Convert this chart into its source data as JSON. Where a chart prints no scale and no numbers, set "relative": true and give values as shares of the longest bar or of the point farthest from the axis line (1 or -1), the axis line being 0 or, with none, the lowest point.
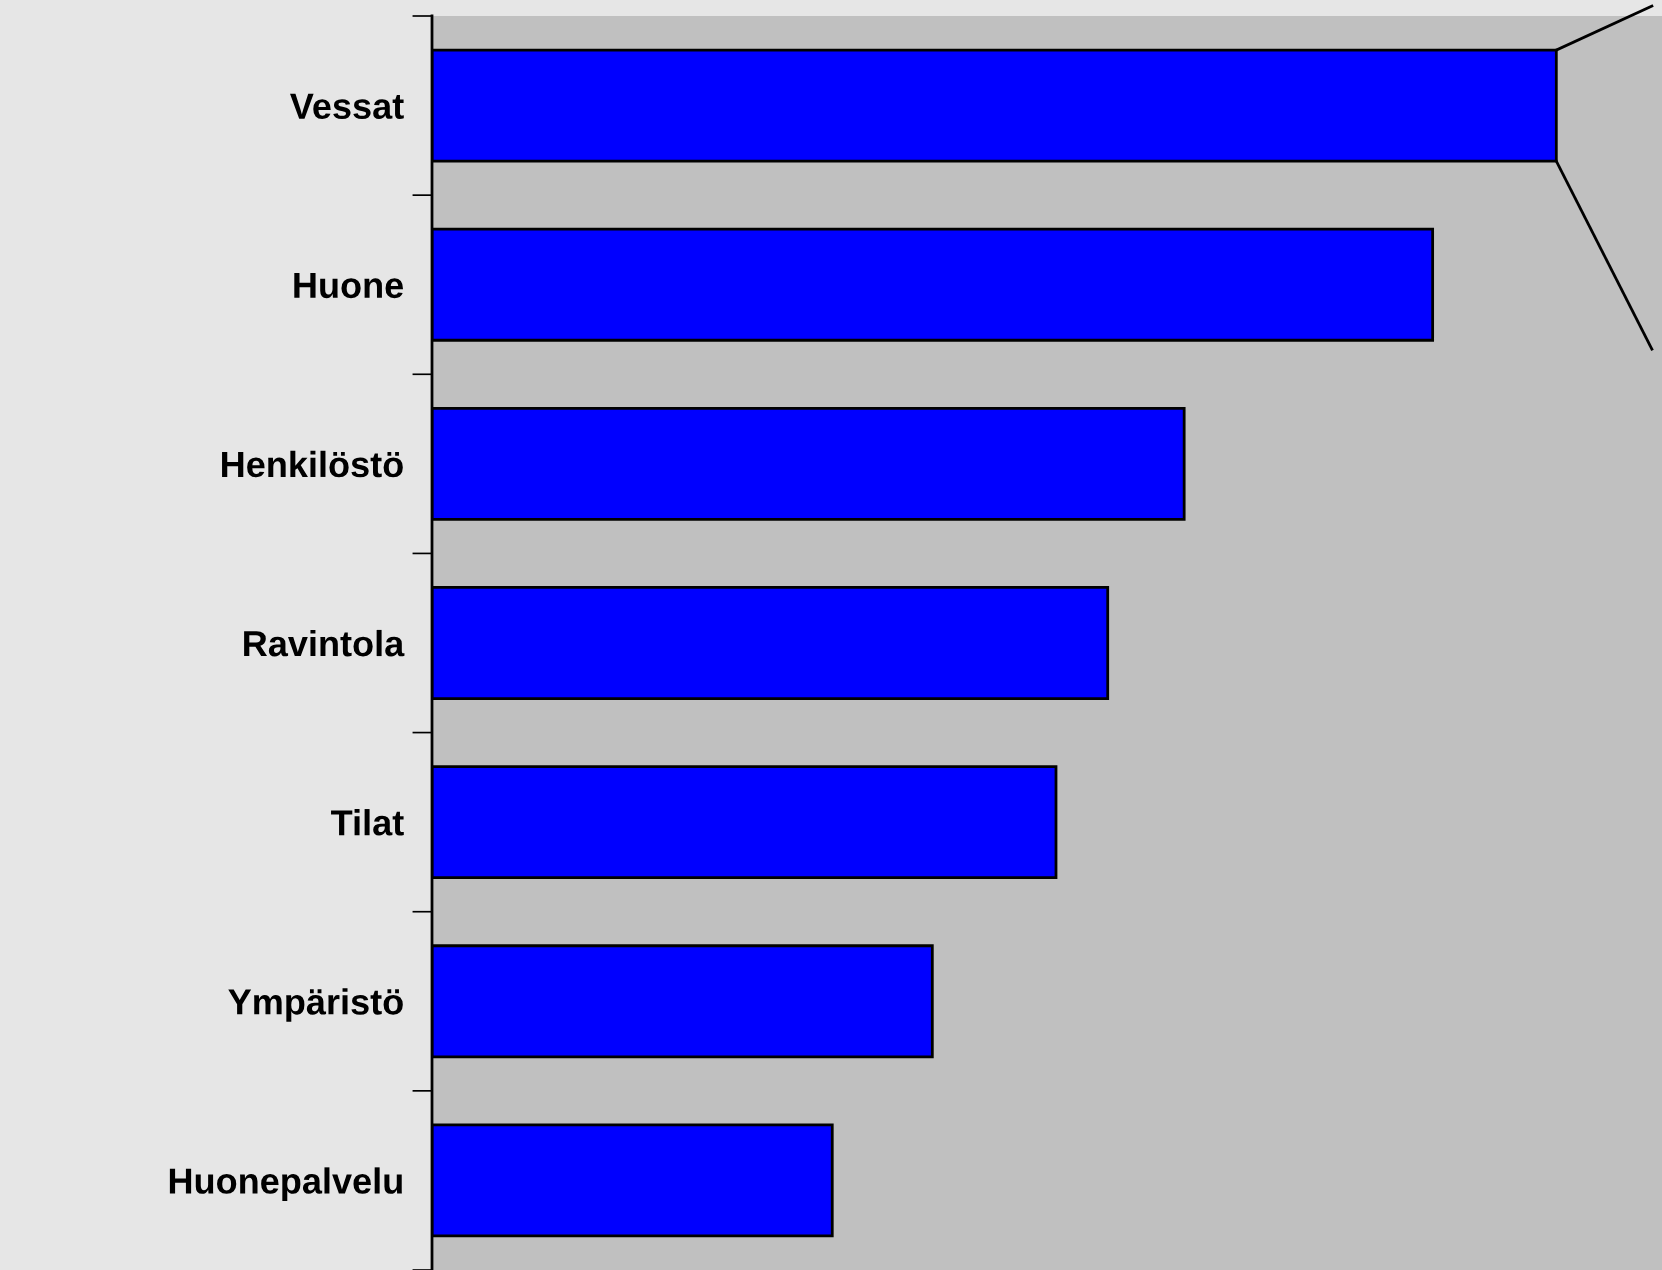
{
  "chart_data": {
    "type": "bar",
    "orientation": "horizontal",
    "relative": true,
    "categories": [
      "Vessat",
      "Huone",
      "Henkilöstö",
      "Ravintola",
      "Tilat",
      "Ympäristö",
      "Huonepalvelu"
    ],
    "values": [
      1,
      0.89,
      0.669,
      0.601,
      0.555,
      0.445,
      0.356
    ],
    "color": "#0000ff",
    "grid": false,
    "legend": false
  }
}
